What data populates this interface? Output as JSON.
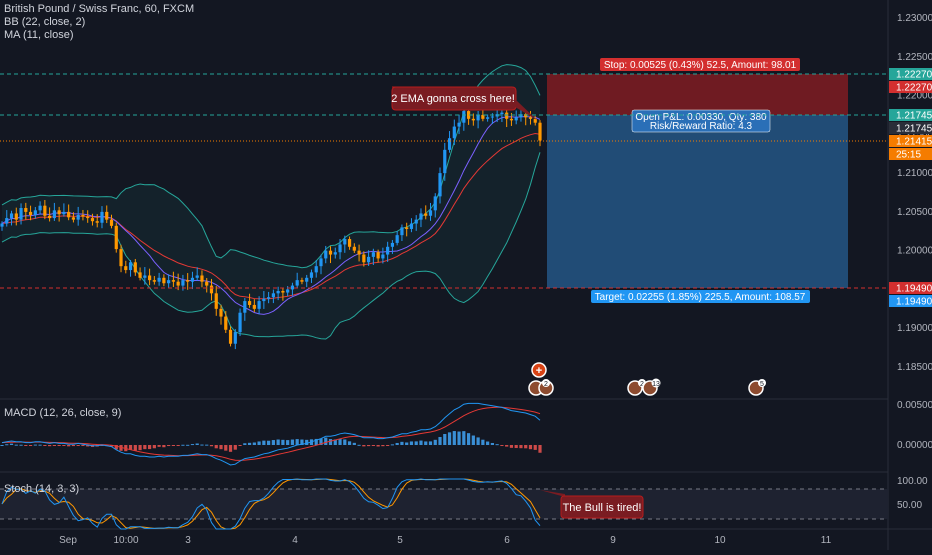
{
  "legend": {
    "symbol": "British Pound / Swiss Franc, 60, FXCM",
    "bb": "BB (22, close, 2)",
    "ma": "MA (11, close)",
    "macd": "MACD (12, 26, close, 9)",
    "stoch": "Stoch (14, 3, 3)"
  },
  "colors": {
    "background": "#131722",
    "up": "#2196f3",
    "down": "#ff9800",
    "stop_zone": "#7a1c22",
    "target_zone": "#23527f",
    "bb_band": "#26a69a",
    "ma_line": "#7b61ff",
    "ema_line": "#e53935"
  },
  "price_axis": {
    "ticks": [
      "1.23000",
      "1.22500",
      "1.22000",
      "1.21500",
      "1.21000",
      "1.20500",
      "1.20000",
      "1.19500",
      "1.19000",
      "1.18500"
    ],
    "labels": [
      {
        "text": "1.22270",
        "color": "#26a69a"
      },
      {
        "text": "1.22270",
        "color": "#d32f2f"
      },
      {
        "text": "1.21745",
        "color": "#26a69a"
      },
      {
        "text": "1.21745",
        "color": "#2a2e39"
      },
      {
        "text": "1.21415",
        "color": "#f57c00"
      },
      {
        "text": "25:15",
        "color": "#f57c00"
      },
      {
        "text": "1.19490",
        "color": "#d32f2f"
      },
      {
        "text": "1.19490",
        "color": "#2196f3"
      }
    ]
  },
  "time_axis": {
    "labels": [
      "Sep",
      "10:00",
      "3",
      "4",
      "5",
      "6",
      "9",
      "10",
      "11"
    ]
  },
  "position": {
    "stop_label": "Stop: 0.00525 (0.43%) 52.5, Amount: 98.01",
    "pnl_label": "Open P&L: 0.00330, Qty: 380",
    "rr_label": "Risk/Reward Ratio: 4.3",
    "target_label": "Target: 0.02255 (1.85%) 225.5, Amount: 108.57",
    "entry": 1.21745,
    "stop": 1.2227,
    "target": 1.1949
  },
  "annotations": {
    "ema_cross": "2 EMA gonna cross here!",
    "bull_tired": "The Bull is tired!"
  },
  "event_badges": [
    "2",
    "2",
    "13",
    "5"
  ],
  "macd_axis": [
    "0.00500",
    "0.00000"
  ],
  "stoch_axis": [
    "100.00",
    "50.00"
  ],
  "chart_data": {
    "type": "candlestick",
    "title": "British Pound / Swiss Franc, 60, FXCM",
    "ylim": [
      1.1835,
      1.2325
    ],
    "closes": [
      1.2035,
      1.2042,
      1.2048,
      1.204,
      1.2055,
      1.205,
      1.2046,
      1.2052,
      1.2058,
      1.2045,
      1.2042,
      1.2052,
      1.2047,
      1.205,
      1.2043,
      1.204,
      1.2046,
      1.2044,
      1.2042,
      1.2038,
      1.2036,
      1.205,
      1.204,
      1.2032,
      1.2002,
      1.198,
      1.1975,
      1.1985,
      1.1972,
      1.1965,
      1.1968,
      1.1962,
      1.196,
      1.1965,
      1.1958,
      1.1962,
      1.196,
      1.1955,
      1.1962,
      1.196,
      1.1965,
      1.1968,
      1.196,
      1.1955,
      1.1945,
      1.1925,
      1.1915,
      1.1898,
      1.188,
      1.1895,
      1.192,
      1.1935,
      1.193,
      1.1925,
      1.1935,
      1.1938,
      1.194,
      1.1945,
      1.1948,
      1.1946,
      1.195,
      1.1955,
      1.1962,
      1.196,
      1.1965,
      1.1972,
      1.198,
      1.199,
      1.2,
      1.1995,
      1.1998,
      1.2008,
      1.2015,
      1.2005,
      1.2,
      1.1995,
      1.1985,
      1.1992,
      1.1998,
      1.199,
      1.1995,
      1.2005,
      1.201,
      1.202,
      1.203,
      1.2028,
      1.2035,
      1.204,
      1.2048,
      1.2045,
      1.2052,
      1.207,
      1.21,
      1.213,
      1.2145,
      1.216,
      1.2165,
      1.218,
      1.217,
      1.2168,
      1.2175,
      1.217,
      1.2172,
      1.2173,
      1.2176,
      1.2178,
      1.217,
      1.2168,
      1.2172,
      1.2176,
      1.2172,
      1.217,
      1.2165,
      1.2142
    ],
    "macd": [
      0.0003,
      0.0004,
      0.0005,
      0.0004,
      0.0004,
      0.0003,
      0.0003,
      0.0004,
      0.0004,
      0.0003,
      0.0002,
      0.0003,
      0.0002,
      0.0002,
      0.0001,
      0.0001,
      0.0002,
      0.0001,
      0.0,
      -0.0001,
      -0.0001,
      0.0,
      -0.0001,
      -0.0002,
      -0.0006,
      -0.0009,
      -0.0011,
      -0.0011,
      -0.0013,
      -0.0014,
      -0.0014,
      -0.0015,
      -0.0015,
      -0.0014,
      -0.0015,
      -0.0014,
      -0.0014,
      -0.0014,
      -0.0013,
      -0.0013,
      -0.0012,
      -0.0011,
      -0.0012,
      -0.0012,
      -0.0014,
      -0.0017,
      -0.0019,
      -0.0022,
      -0.0025,
      -0.0024,
      -0.002,
      -0.0017,
      -0.0016,
      -0.0015,
      -0.0013,
      -0.0011,
      -0.001,
      -0.0008,
      -0.0006,
      -0.0005,
      -0.0004,
      -0.0002,
      0.0,
      0.0001,
      0.0002,
      0.0004,
      0.0006,
      0.0008,
      0.0011,
      0.0011,
      0.0012,
      0.0014,
      0.0015,
      0.0014,
      0.0013,
      0.0011,
      0.0009,
      0.0009,
      0.0009,
      0.0008,
      0.0008,
      0.0009,
      0.001,
      0.0012,
      0.0014,
      0.0014,
      0.0016,
      0.0017,
      0.0019,
      0.0019,
      0.002,
      0.0023,
      0.0028,
      0.0034,
      0.0039,
      0.0044,
      0.0047,
      0.0051,
      0.0052,
      0.0052,
      0.0052,
      0.0051,
      0.005,
      0.0049,
      0.0048,
      0.0047,
      0.0045,
      0.0043,
      0.0042,
      0.0041,
      0.004,
      0.0038,
      0.0036,
      0.0031
    ],
    "stoch_range": [
      0,
      100
    ]
  }
}
